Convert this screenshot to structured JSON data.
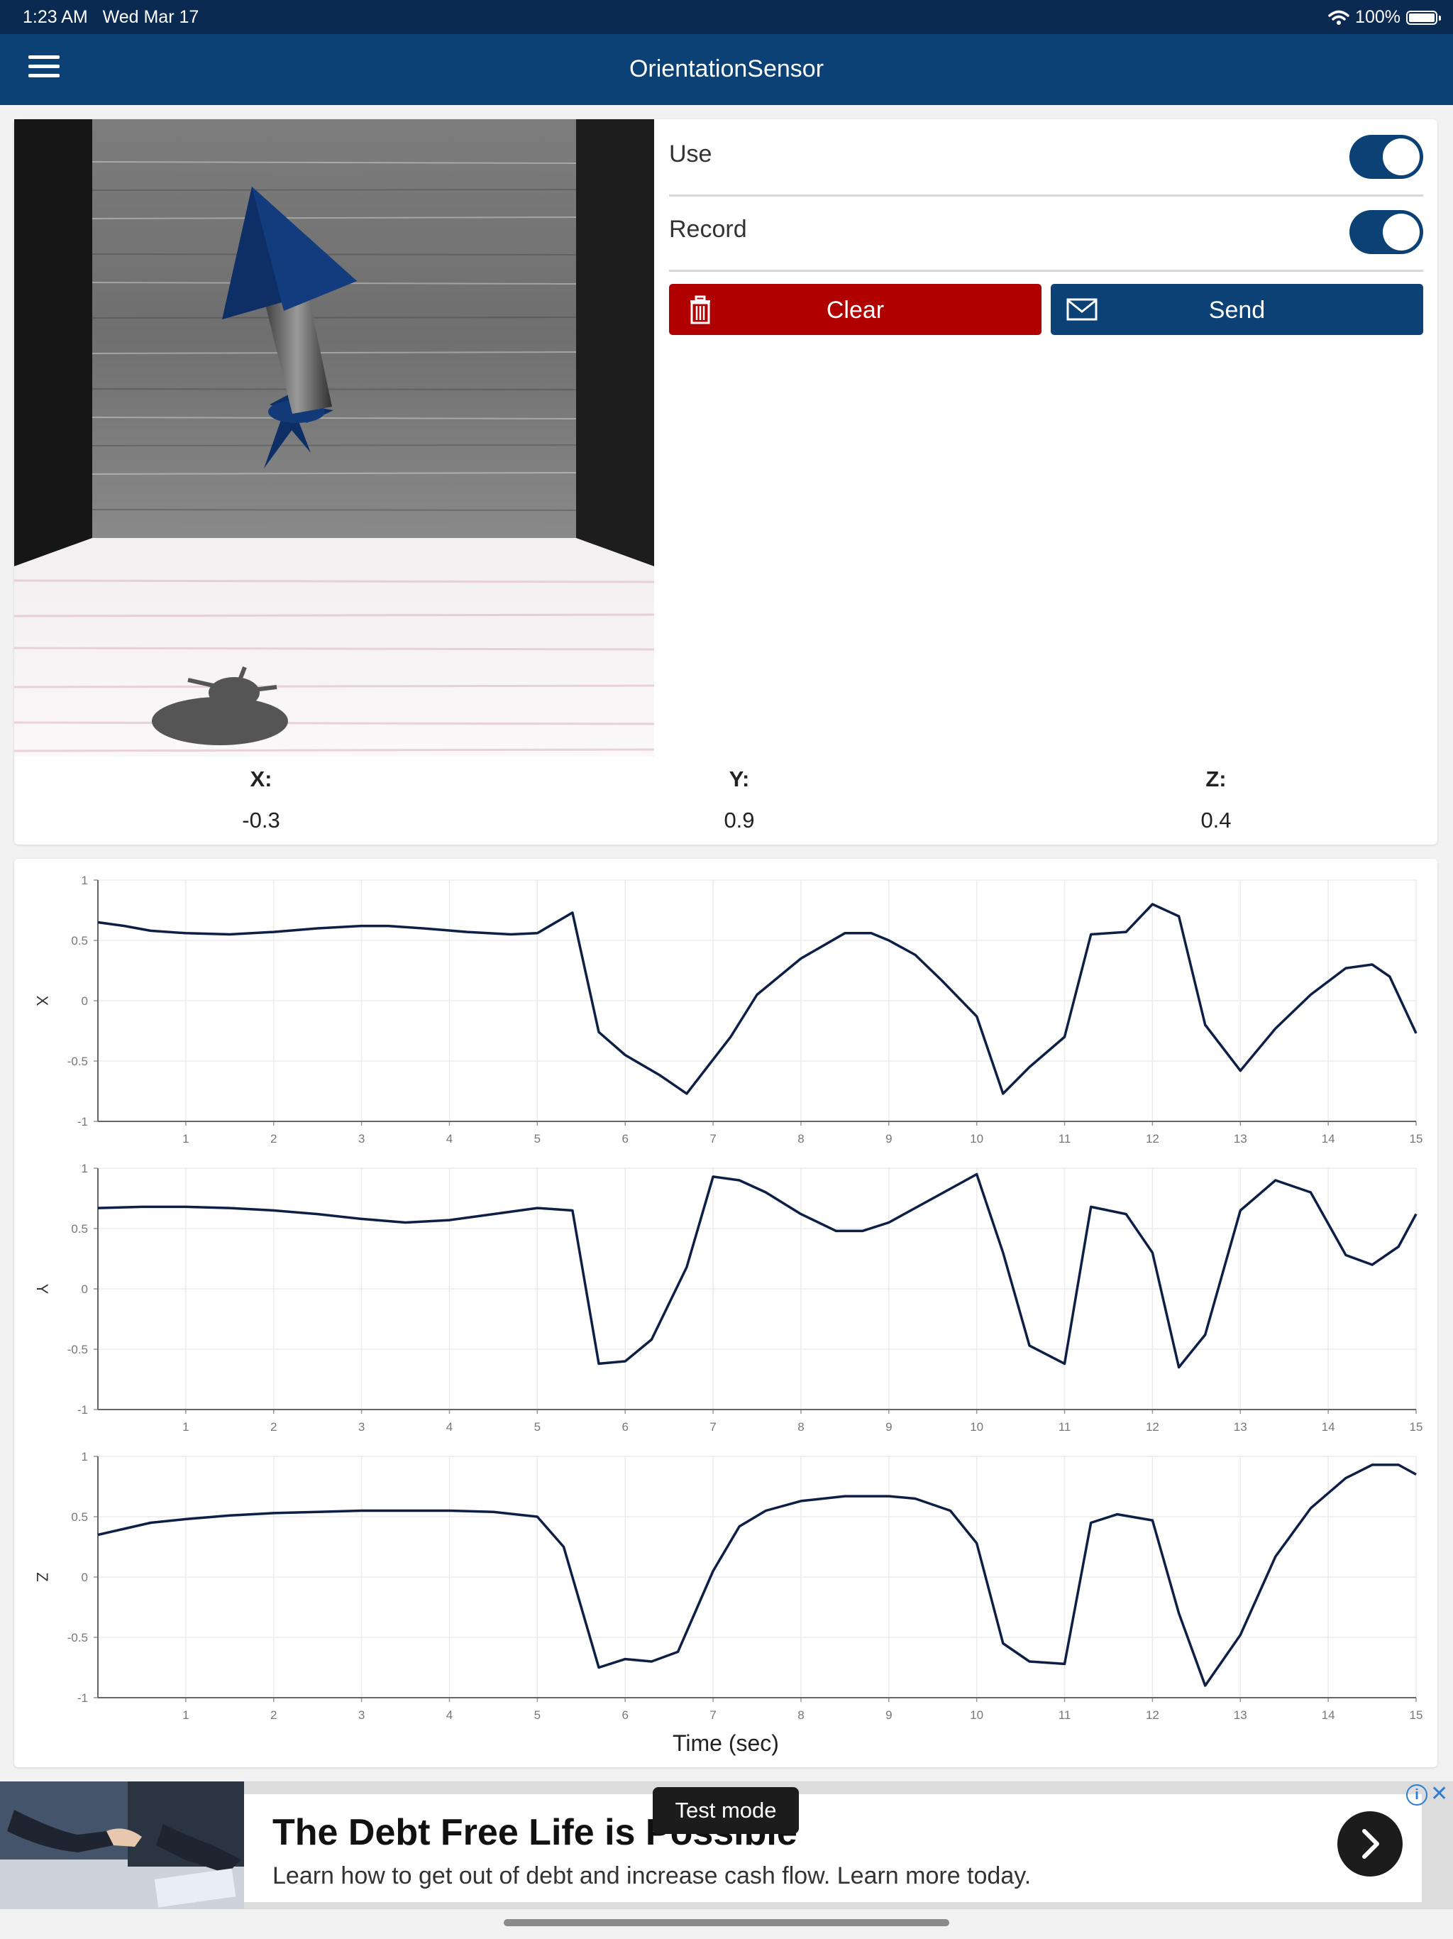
{
  "status_bar": {
    "time": "1:23 AM",
    "date": "Wed Mar 17",
    "battery": "100%"
  },
  "nav": {
    "title": "OrientationSensor"
  },
  "controls": {
    "use_label": "Use",
    "record_label": "Record",
    "use_on": true,
    "record_on": true,
    "clear_label": "Clear",
    "send_label": "Send"
  },
  "readout": {
    "x_label": "X:",
    "x_value": "-0.3",
    "y_label": "Y:",
    "y_value": "0.9",
    "z_label": "Z:",
    "z_value": "0.4"
  },
  "chart_data": [
    {
      "type": "line",
      "ylabel": "X",
      "ylim": [
        -1,
        1
      ],
      "xlim": [
        0,
        15
      ],
      "yticks": [
        "1",
        "0.5",
        "0",
        "-0.5",
        "-1"
      ],
      "xticks": [
        "1",
        "2",
        "3",
        "4",
        "5",
        "6",
        "7",
        "8",
        "9",
        "10",
        "11",
        "12",
        "13",
        "14",
        "15"
      ],
      "x": [
        0,
        0.3,
        0.6,
        1,
        1.5,
        2,
        2.5,
        3,
        3.3,
        3.7,
        4.2,
        4.7,
        5,
        5.4,
        5.7,
        6,
        6.4,
        6.7,
        7.2,
        7.5,
        8,
        8.5,
        8.8,
        9,
        9.3,
        9.6,
        10,
        10.3,
        10.6,
        11,
        11.3,
        11.7,
        12,
        12.3,
        12.6,
        13,
        13.4,
        13.8,
        14.2,
        14.5,
        14.7,
        15
      ],
      "series": [
        {
          "color": "#0d1f45",
          "values": [
            0.65,
            0.62,
            0.58,
            0.56,
            0.55,
            0.57,
            0.6,
            0.62,
            0.62,
            0.6,
            0.57,
            0.55,
            0.56,
            0.73,
            -0.26,
            -0.45,
            -0.62,
            -0.77,
            -0.3,
            0.05,
            0.35,
            0.56,
            0.56,
            0.5,
            0.38,
            0.17,
            -0.13,
            -0.77,
            -0.55,
            -0.3,
            0.55,
            0.57,
            0.8,
            0.7,
            -0.2,
            -0.58,
            -0.23,
            0.05,
            0.27,
            0.3,
            0.2,
            -0.27
          ]
        }
      ]
    },
    {
      "type": "line",
      "ylabel": "Y",
      "ylim": [
        -1,
        1
      ],
      "xlim": [
        0,
        15
      ],
      "yticks": [
        "1",
        "0.5",
        "0",
        "-0.5",
        "-1"
      ],
      "xticks": [
        "1",
        "2",
        "3",
        "4",
        "5",
        "6",
        "7",
        "8",
        "9",
        "10",
        "11",
        "12",
        "13",
        "14",
        "15"
      ],
      "x": [
        0,
        0.5,
        1,
        1.5,
        2,
        2.5,
        3,
        3.5,
        4,
        4.5,
        5,
        5.4,
        5.7,
        6,
        6.3,
        6.7,
        7,
        7.3,
        7.6,
        8,
        8.4,
        8.7,
        9,
        9.5,
        10,
        10.3,
        10.6,
        11,
        11.3,
        11.7,
        12,
        12.3,
        12.6,
        13,
        13.4,
        13.8,
        14.2,
        14.5,
        14.8,
        15
      ],
      "series": [
        {
          "color": "#0d1f45",
          "values": [
            0.67,
            0.68,
            0.68,
            0.67,
            0.65,
            0.62,
            0.58,
            0.55,
            0.57,
            0.62,
            0.67,
            0.65,
            -0.62,
            -0.6,
            -0.42,
            0.18,
            0.93,
            0.9,
            0.8,
            0.62,
            0.48,
            0.48,
            0.55,
            0.75,
            0.95,
            0.3,
            -0.47,
            -0.62,
            0.68,
            0.62,
            0.3,
            -0.65,
            -0.38,
            0.65,
            0.9,
            0.8,
            0.28,
            0.2,
            0.35,
            0.62
          ]
        }
      ]
    },
    {
      "type": "line",
      "ylabel": "Z",
      "ylim": [
        -1,
        1
      ],
      "xlim": [
        0,
        15
      ],
      "yticks": [
        "1",
        "0.5",
        "0",
        "-0.5",
        "-1"
      ],
      "xticks": [
        "1",
        "2",
        "3",
        "4",
        "5",
        "6",
        "7",
        "8",
        "9",
        "10",
        "11",
        "12",
        "13",
        "14",
        "15"
      ],
      "x": [
        0,
        0.3,
        0.6,
        1,
        1.5,
        2,
        2.5,
        3,
        3.5,
        4,
        4.5,
        5,
        5.3,
        5.7,
        6,
        6.3,
        6.6,
        7,
        7.3,
        7.6,
        8,
        8.5,
        9,
        9.3,
        9.7,
        10,
        10.3,
        10.6,
        11,
        11.3,
        11.6,
        12,
        12.3,
        12.6,
        13,
        13.4,
        13.8,
        14.2,
        14.5,
        14.8,
        15
      ],
      "series": [
        {
          "color": "#0d1f45",
          "values": [
            0.35,
            0.4,
            0.45,
            0.48,
            0.51,
            0.53,
            0.54,
            0.55,
            0.55,
            0.55,
            0.54,
            0.5,
            0.25,
            -0.75,
            -0.68,
            -0.7,
            -0.62,
            0.05,
            0.42,
            0.55,
            0.63,
            0.67,
            0.67,
            0.65,
            0.55,
            0.28,
            -0.55,
            -0.7,
            -0.72,
            0.45,
            0.52,
            0.47,
            -0.3,
            -0.9,
            -0.48,
            0.17,
            0.57,
            0.82,
            0.93,
            0.93,
            0.85
          ]
        }
      ]
    }
  ],
  "xaxis_label": "Time (sec)",
  "ad": {
    "headline": "The Debt Free Life is Possible",
    "body": "Learn how to get out of debt and increase cash flow. Learn more today.",
    "test_mode": "Test mode"
  }
}
